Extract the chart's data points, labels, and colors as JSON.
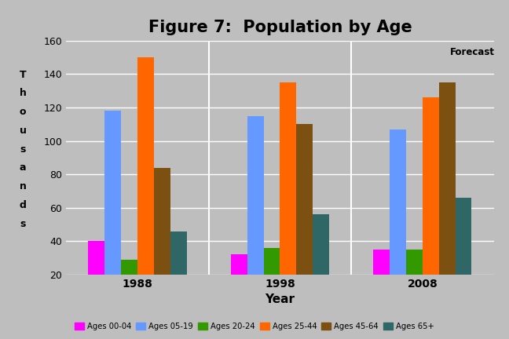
{
  "title": "Figure 7:  Population by Age",
  "xlabel": "Year",
  "ylabel_chars": [
    "T",
    "h",
    "o",
    "u",
    "s",
    "a",
    "n",
    "d",
    "s"
  ],
  "categories": [
    "1988",
    "1998",
    "2008"
  ],
  "series": {
    "Ages 00-04": [
      40,
      32,
      35
    ],
    "Ages 05-19": [
      118,
      115,
      107
    ],
    "Ages 20-24": [
      29,
      36,
      35
    ],
    "Ages 25-44": [
      150,
      135,
      126
    ],
    "Ages 45-64": [
      84,
      110,
      135
    ],
    "Ages 65+": [
      46,
      56,
      66
    ]
  },
  "colors": {
    "Ages 00-04": "#FF00FF",
    "Ages 05-19": "#6699FF",
    "Ages 20-24": "#339900",
    "Ages 25-44": "#FF6600",
    "Ages 45-64": "#7B5010",
    "Ages 65+": "#2F6666"
  },
  "ylim": [
    20,
    160
  ],
  "yticks": [
    20,
    40,
    60,
    80,
    100,
    120,
    140,
    160
  ],
  "background_color": "#BEBEBE",
  "plot_background_color": "#BEBEBE",
  "forecast_label": "Forecast",
  "title_fontsize": 15,
  "axis_label_fontsize": 11,
  "bar_width": 0.115
}
